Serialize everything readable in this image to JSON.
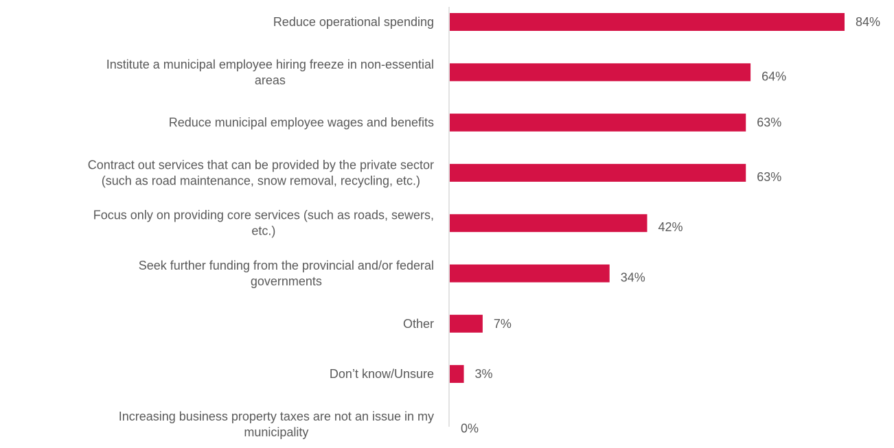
{
  "chart_data": {
    "type": "bar",
    "orientation": "horizontal",
    "title": "",
    "xlabel": "",
    "ylabel": "",
    "xlim": [
      0,
      100
    ],
    "grid": false,
    "legend": "none",
    "bar_color": "#d41245",
    "categories": [
      [
        "Reduce operational spending"
      ],
      [
        "Institute a municipal employee hiring freeze in non-essential",
        "areas"
      ],
      [
        "Reduce municipal employee wages and benefits"
      ],
      [
        "Contract out services that can be provided by the private sector",
        "(such as road maintenance, snow removal, recycling, etc.)"
      ],
      [
        "Focus only on providing core services (such as roads, sewers,",
        "etc.)"
      ],
      [
        "Seek further funding from the provincial and/or federal",
        "governments"
      ],
      [
        "Other"
      ],
      [
        "Don’t know/Unsure"
      ],
      [
        "Increasing business property taxes are not an issue in my",
        "municipality"
      ]
    ],
    "values": [
      84,
      64,
      63,
      63,
      42,
      34,
      7,
      3,
      0
    ],
    "value_labels": [
      "84%",
      "64%",
      "63%",
      "63%",
      "42%",
      "34%",
      "7%",
      "3%",
      "0%"
    ]
  }
}
